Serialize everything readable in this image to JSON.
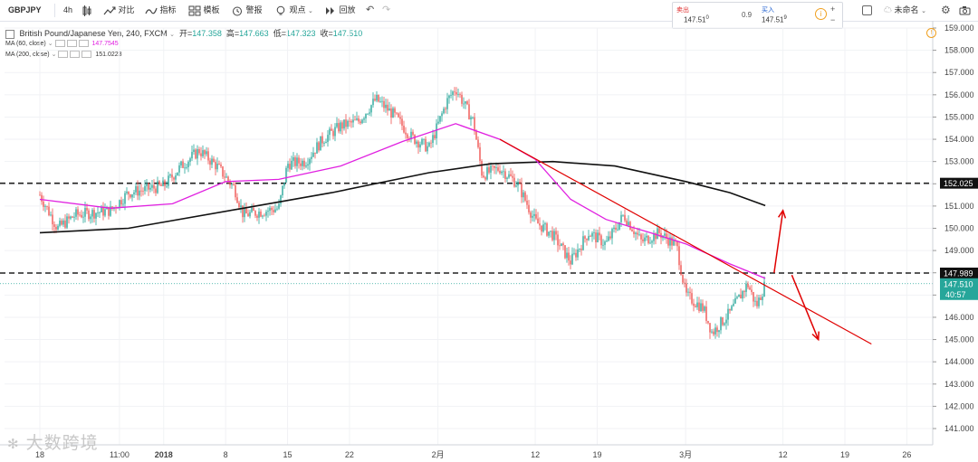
{
  "toolbar": {
    "symbol": "GBPJPY",
    "interval": "4h",
    "compare_label": "对比",
    "indicators_label": "指标",
    "templates_label": "模板",
    "alert_label": "警报",
    "view_label": "观点",
    "replay_label": "回放",
    "unnamed_label": "未命名"
  },
  "trade_panel": {
    "sell_label": "卖出",
    "sell_price": "147.51",
    "sell_sup": "0",
    "spread": "0.9",
    "buy_label": "买入",
    "buy_price": "147.51",
    "buy_sup": "9",
    "plus": "+",
    "minus": "−"
  },
  "legend": {
    "title": "British Pound/Japanese Yen, 240, FXCM",
    "open_label": "开=",
    "open": "147.358",
    "high_label": "高=",
    "high": "147.663",
    "low_label": "低=",
    "low": "147.323",
    "close_label": "收=",
    "close": "147.510",
    "ma60_label": "MA (60, close)",
    "ma60_value": "147.7545",
    "ma200_label": "MA (200, close)",
    "ma200_value": "151.0223"
  },
  "watermark": "大数跨境",
  "colors": {
    "up_candle": "#26a69a",
    "down_candle": "#ef5350",
    "ma60": "#e020e0",
    "ma200": "#111111",
    "trendline": "#e00000",
    "price_tag_bg": "#26a69a",
    "level_tag_bg": "#111111"
  },
  "chart_data": {
    "type": "candlestick",
    "symbol": "British Pound/Japanese Yen",
    "timeframe": "240",
    "source": "FXCM",
    "ylim": [
      140.3,
      159.2
    ],
    "y_ticks": [
      "159.000",
      "158.000",
      "157.000",
      "156.000",
      "155.000",
      "154.000",
      "153.000",
      "152.000",
      "151.000",
      "150.000",
      "149.000",
      "148.000",
      "147.000",
      "146.000",
      "145.000",
      "144.000",
      "143.000",
      "142.000",
      "141.000"
    ],
    "x_ticks": [
      "18",
      "11:00",
      "2018",
      "8",
      "15",
      "22",
      "2月",
      "12",
      "19",
      "3月",
      "12",
      "19",
      "26"
    ],
    "horizontal_levels": [
      {
        "value": 152.025,
        "label": "152.025",
        "style": "dashed"
      },
      {
        "value": 147.989,
        "label": "147.989",
        "style": "dashed"
      }
    ],
    "last_price": {
      "value": 147.51,
      "label": "147.510",
      "countdown": "40:57"
    },
    "price_path": [
      {
        "date": "2017-12-18",
        "price": 151.5
      },
      {
        "date": "2017-12-20",
        "price": 150.0
      },
      {
        "date": "2017-12-22",
        "price": 150.6
      },
      {
        "date": "2017-12-26",
        "price": 150.8
      },
      {
        "date": "2017-12-28",
        "price": 151.6
      },
      {
        "date": "2018-01-01",
        "price": 151.9
      },
      {
        "date": "2018-01-03",
        "price": 152.8
      },
      {
        "date": "2018-01-05",
        "price": 153.5
      },
      {
        "date": "2018-01-07",
        "price": 152.8
      },
      {
        "date": "2018-01-09",
        "price": 151.8
      },
      {
        "date": "2018-01-10",
        "price": 150.6
      },
      {
        "date": "2018-01-14",
        "price": 150.9
      },
      {
        "date": "2018-01-15",
        "price": 152.9
      },
      {
        "date": "2018-01-17",
        "price": 153.0
      },
      {
        "date": "2018-01-19",
        "price": 154.0
      },
      {
        "date": "2018-01-21",
        "price": 154.6
      },
      {
        "date": "2018-01-23",
        "price": 154.8
      },
      {
        "date": "2018-01-25",
        "price": 155.8
      },
      {
        "date": "2018-01-27",
        "price": 155.1
      },
      {
        "date": "2018-01-29",
        "price": 154.1
      },
      {
        "date": "2018-01-31",
        "price": 153.6
      },
      {
        "date": "2018-02-02",
        "price": 155.7
      },
      {
        "date": "2018-02-03",
        "price": 156.3
      },
      {
        "date": "2018-02-05",
        "price": 154.8
      },
      {
        "date": "2018-02-06",
        "price": 152.4
      },
      {
        "date": "2018-02-08",
        "price": 152.7
      },
      {
        "date": "2018-02-10",
        "price": 152.0
      },
      {
        "date": "2018-02-12",
        "price": 150.3
      },
      {
        "date": "2018-02-14",
        "price": 149.7
      },
      {
        "date": "2018-02-16",
        "price": 148.5
      },
      {
        "date": "2018-02-18",
        "price": 149.8
      },
      {
        "date": "2018-02-20",
        "price": 149.3
      },
      {
        "date": "2018-02-22",
        "price": 150.6
      },
      {
        "date": "2018-02-24",
        "price": 149.4
      },
      {
        "date": "2018-02-26",
        "price": 149.8
      },
      {
        "date": "2018-02-28",
        "price": 149.2
      },
      {
        "date": "2018-03-01",
        "price": 147.0
      },
      {
        "date": "2018-03-03",
        "price": 146.4
      },
      {
        "date": "2018-03-04",
        "price": 145.3
      },
      {
        "date": "2018-03-06",
        "price": 146.2
      },
      {
        "date": "2018-03-08",
        "price": 147.5
      },
      {
        "date": "2018-03-09",
        "price": 146.5
      },
      {
        "date": "2018-03-10",
        "price": 147.51
      }
    ],
    "ma60_path": [
      {
        "date": "2017-12-18",
        "price": 151.3
      },
      {
        "date": "2017-12-26",
        "price": 150.9
      },
      {
        "date": "2018-01-02",
        "price": 151.1
      },
      {
        "date": "2018-01-08",
        "price": 152.1
      },
      {
        "date": "2018-01-14",
        "price": 152.2
      },
      {
        "date": "2018-01-21",
        "price": 152.8
      },
      {
        "date": "2018-01-28",
        "price": 153.9
      },
      {
        "date": "2018-02-03",
        "price": 154.7
      },
      {
        "date": "2018-02-08",
        "price": 154.0
      },
      {
        "date": "2018-02-12",
        "price": 153.1
      },
      {
        "date": "2018-02-16",
        "price": 151.3
      },
      {
        "date": "2018-02-20",
        "price": 150.4
      },
      {
        "date": "2018-02-25",
        "price": 149.8
      },
      {
        "date": "2018-03-01",
        "price": 149.3
      },
      {
        "date": "2018-03-06",
        "price": 148.4
      },
      {
        "date": "2018-03-10",
        "price": 147.75
      }
    ],
    "ma200_path": [
      {
        "date": "2017-12-18",
        "price": 149.8
      },
      {
        "date": "2017-12-28",
        "price": 150.0
      },
      {
        "date": "2018-01-10",
        "price": 150.9
      },
      {
        "date": "2018-01-20",
        "price": 151.6
      },
      {
        "date": "2018-01-31",
        "price": 152.5
      },
      {
        "date": "2018-02-07",
        "price": 152.9
      },
      {
        "date": "2018-02-14",
        "price": 153.0
      },
      {
        "date": "2018-02-21",
        "price": 152.8
      },
      {
        "date": "2018-03-01",
        "price": 152.1
      },
      {
        "date": "2018-03-06",
        "price": 151.6
      },
      {
        "date": "2018-03-10",
        "price": 151.02
      }
    ],
    "trendline": [
      {
        "date": "2018-02-08",
        "price": 154.0
      },
      {
        "date": "2018-03-22",
        "price": 144.8
      }
    ],
    "projections": [
      {
        "from": {
          "date": "2018-03-11",
          "price": 148.0
        },
        "to": {
          "date": "2018-03-12",
          "price": 150.8
        },
        "direction": "up"
      },
      {
        "from": {
          "date": "2018-03-13",
          "price": 147.9
        },
        "to": {
          "date": "2018-03-16",
          "price": 145.0
        },
        "direction": "down"
      }
    ]
  }
}
